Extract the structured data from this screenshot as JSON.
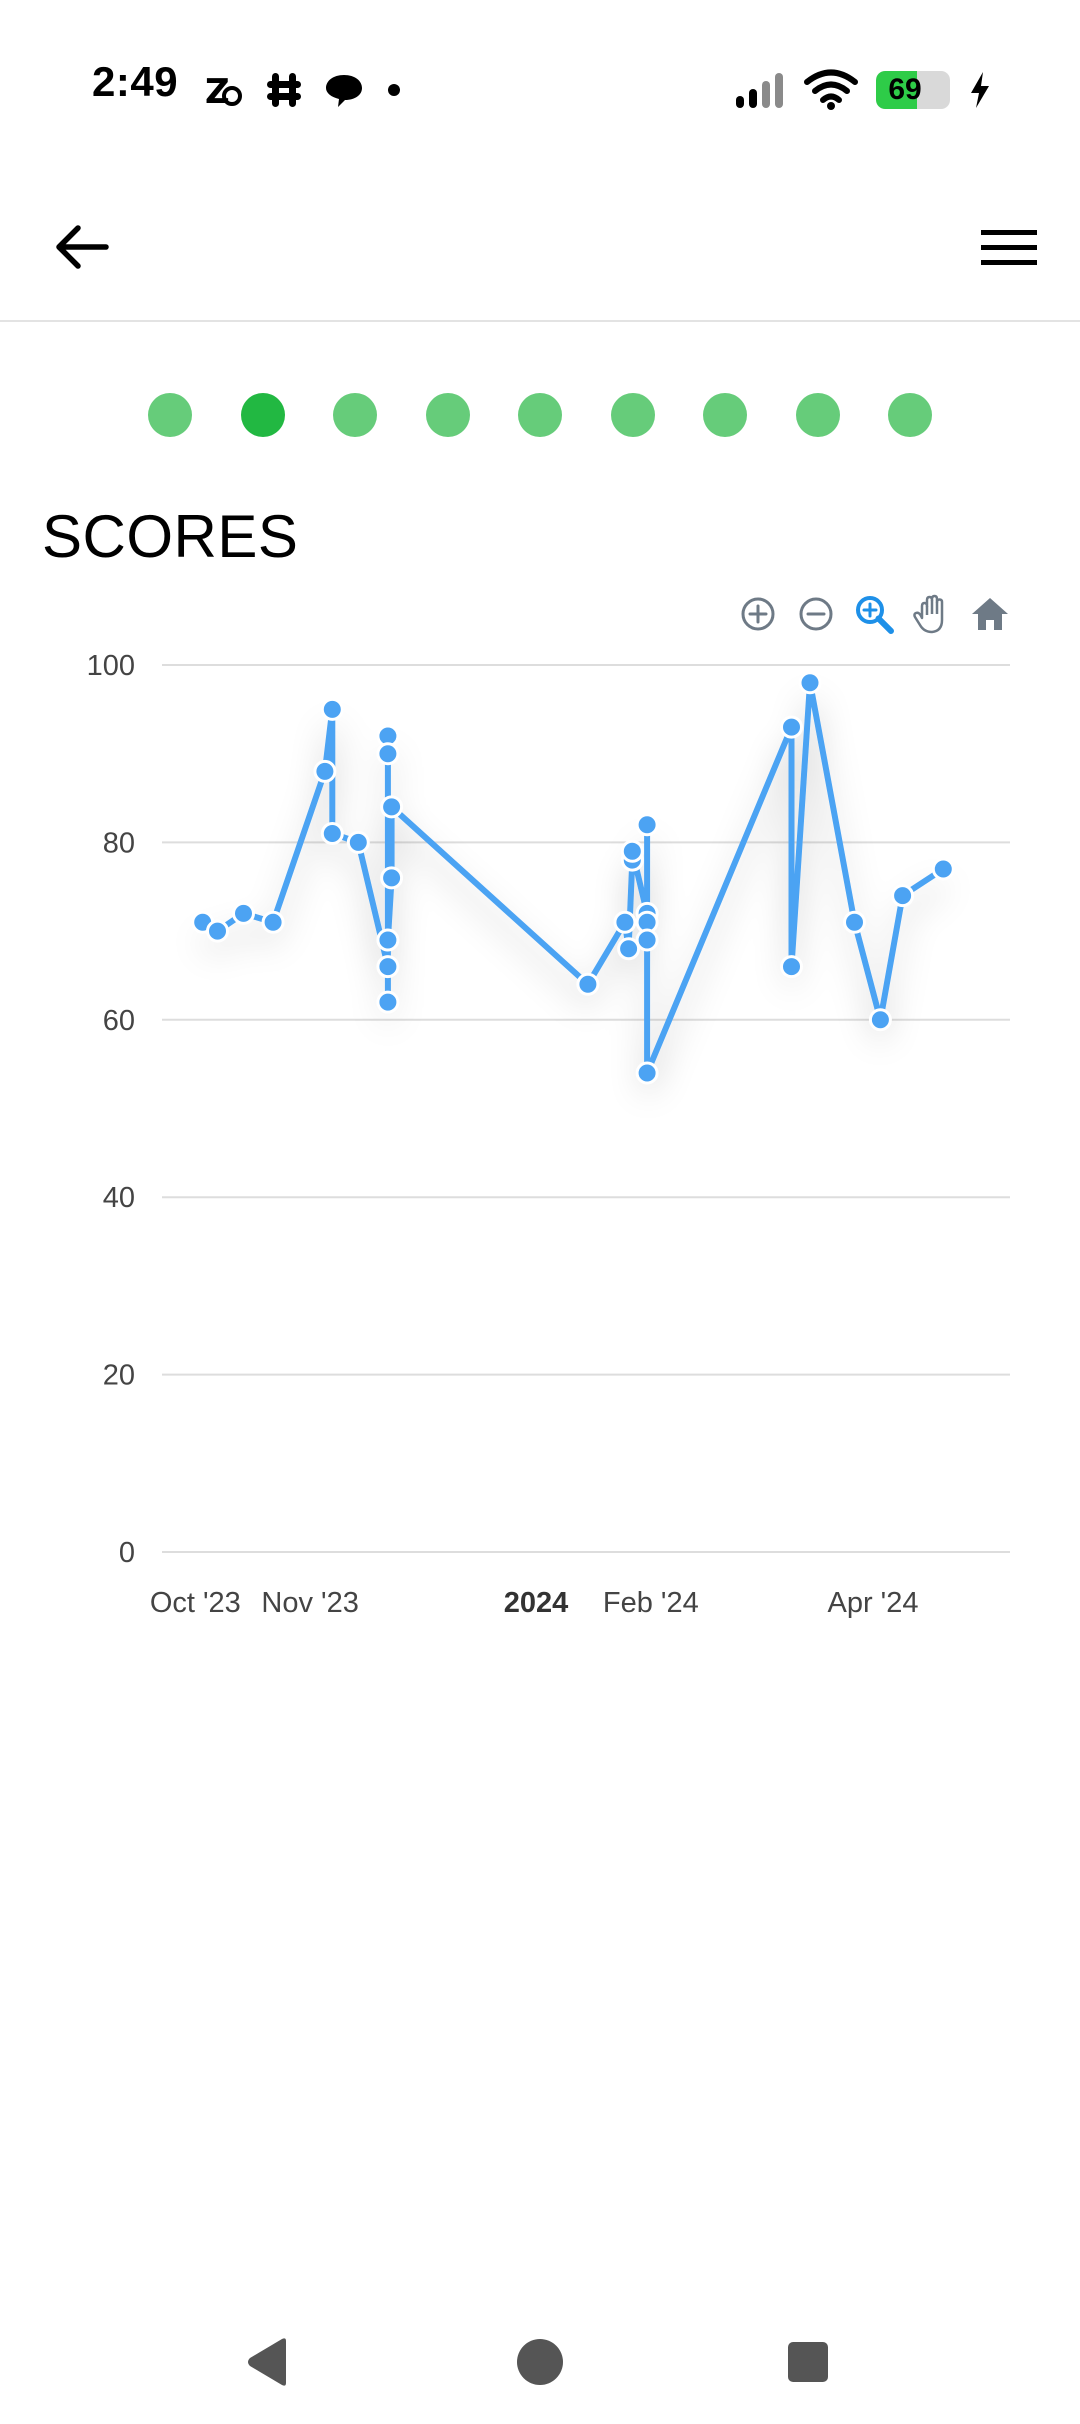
{
  "status_bar": {
    "time": "2:49",
    "left_icons": [
      "zedge-icon",
      "slack-icon",
      "chat-bubble-icon",
      "dot-icon"
    ],
    "right_icons": [
      "signal-icon",
      "wifi-icon",
      "battery-icon",
      "charging-bolt-icon"
    ],
    "battery": {
      "text": "69",
      "level_percent": 69
    }
  },
  "app_bar": {
    "back_icon": "arrow-left-icon",
    "menu_icon": "hamburger-menu-icon"
  },
  "pager": {
    "count": 9,
    "active_index": 1,
    "color": "#66cc7a",
    "active_color": "#22b842"
  },
  "section_title": "SCORES",
  "chart_toolbar": [
    "zoom-in-icon",
    "zoom-out-icon",
    "selection-zoom-icon",
    "pan-hand-icon",
    "reset-home-icon"
  ],
  "colors": {
    "series": "#4ca3f3",
    "grid": "#dddddd",
    "tick": "#444444",
    "active_tool": "#1e90e8",
    "inactive_tool": "#6e7a86"
  },
  "chart_data": {
    "type": "line",
    "title": "",
    "xlabel": "",
    "ylabel": "",
    "ylim": [
      0,
      100
    ],
    "yticks": [
      0,
      20,
      40,
      60,
      80,
      100
    ],
    "grid": true,
    "x_tick_labels": [
      {
        "date": "2023-10-01",
        "label": "Oct '23",
        "bold": false
      },
      {
        "date": "2023-11-01",
        "label": "Nov '23",
        "bold": false
      },
      {
        "date": "2024-01-01",
        "label": "2024",
        "bold": true
      },
      {
        "date": "2024-02-01",
        "label": "Feb '24",
        "bold": false
      },
      {
        "date": "2024-04-01",
        "label": "Apr '24",
        "bold": false
      }
    ],
    "xlim": [
      "2023-09-22",
      "2024-05-08"
    ],
    "series": [
      {
        "points": [
          {
            "x": "2023-10-03",
            "y": 71
          },
          {
            "x": "2023-10-07",
            "y": 70
          },
          {
            "x": "2023-10-14",
            "y": 72
          },
          {
            "x": "2023-10-22",
            "y": 71
          },
          {
            "x": "2023-11-05",
            "y": 88
          },
          {
            "x": "2023-11-07",
            "y": 95
          },
          {
            "x": "2023-11-07",
            "y": 81
          },
          {
            "x": "2023-11-14",
            "y": 80
          },
          {
            "x": "2023-11-22",
            "y": 66
          },
          {
            "x": "2023-11-22",
            "y": 62
          },
          {
            "x": "2023-11-22",
            "y": 92
          },
          {
            "x": "2023-11-22",
            "y": 90
          },
          {
            "x": "2023-11-22",
            "y": 69
          },
          {
            "x": "2023-11-23",
            "y": 76
          },
          {
            "x": "2023-11-23",
            "y": 84
          },
          {
            "x": "2024-01-15",
            "y": 64
          },
          {
            "x": "2024-01-25",
            "y": 71
          },
          {
            "x": "2024-01-26",
            "y": 68
          },
          {
            "x": "2024-01-27",
            "y": 78
          },
          {
            "x": "2024-01-27",
            "y": 79
          },
          {
            "x": "2024-01-31",
            "y": 72
          },
          {
            "x": "2024-01-31",
            "y": 82
          },
          {
            "x": "2024-01-31",
            "y": 71
          },
          {
            "x": "2024-01-31",
            "y": 69
          },
          {
            "x": "2024-01-31",
            "y": 54
          },
          {
            "x": "2024-03-10",
            "y": 93
          },
          {
            "x": "2024-03-10",
            "y": 66
          },
          {
            "x": "2024-03-15",
            "y": 98
          },
          {
            "x": "2024-03-27",
            "y": 71
          },
          {
            "x": "2024-04-03",
            "y": 60
          },
          {
            "x": "2024-04-09",
            "y": 74
          },
          {
            "x": "2024-04-20",
            "y": 77
          }
        ]
      }
    ]
  },
  "nav_bar": [
    "back-triangle-icon",
    "home-circle-icon",
    "recents-square-icon"
  ]
}
